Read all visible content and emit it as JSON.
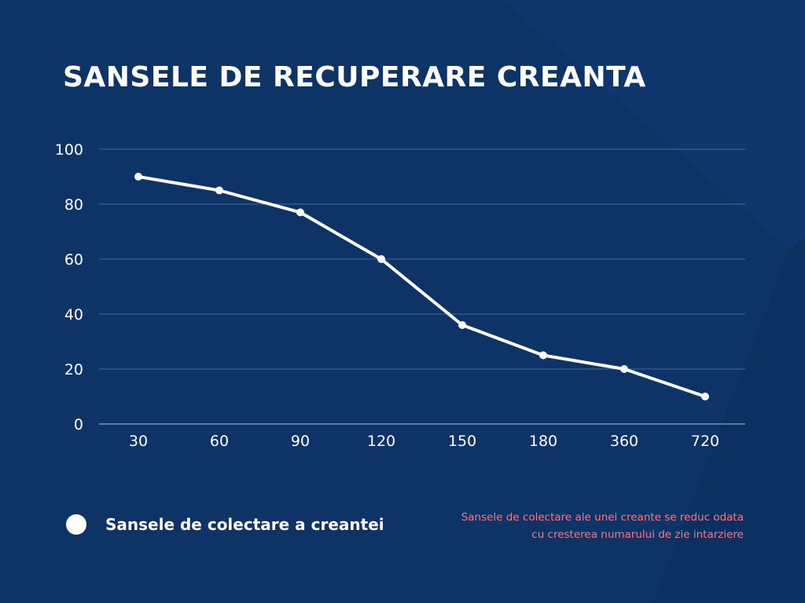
{
  "title": "SANSELE DE RECUPERARE CREANTA",
  "colors": {
    "background": "#0e3367",
    "line": "#ffffff",
    "grid": "#3f6aa0",
    "note": "#f07a85"
  },
  "chart_data": {
    "type": "line",
    "title": "SANSELE DE RECUPERARE CREANTA",
    "categories": [
      "30",
      "60",
      "90",
      "120",
      "150",
      "180",
      "360",
      "720"
    ],
    "series": [
      {
        "name": "Sansele de colectare a creantei",
        "values": [
          90,
          85,
          77,
          60,
          36,
          25,
          20,
          10
        ]
      }
    ],
    "yticks": [
      0,
      20,
      40,
      60,
      80,
      100
    ],
    "ylim": [
      0,
      100
    ],
    "grid": true,
    "legend": "bottom-left",
    "xlabel": "",
    "ylabel": ""
  },
  "legend": {
    "label": "Sansele de colectare a creantei"
  },
  "note": {
    "line1": "Sansele de colectare ale unei creante se reduc odata",
    "line2": "cu cresterea numarului de zie intarziere"
  }
}
